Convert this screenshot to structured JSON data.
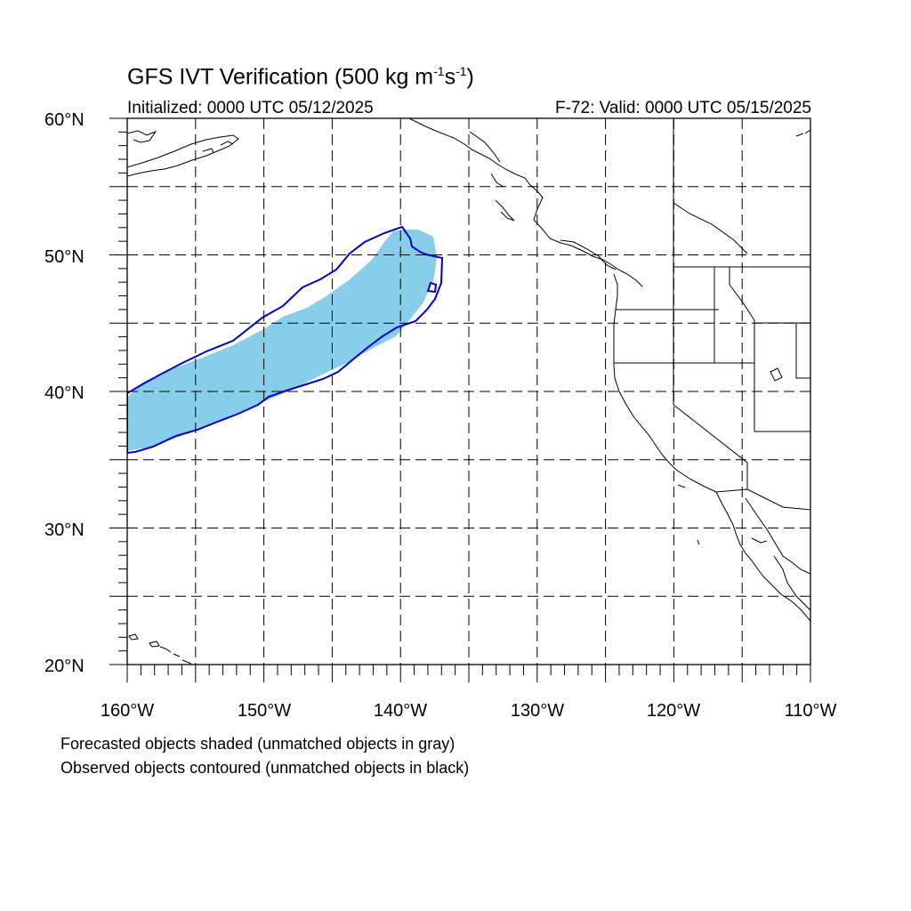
{
  "title": {
    "main": "GFS IVT Verification (500 kg m",
    "exp1": "-1",
    "mid": "s",
    "exp2": "-1",
    "end": ")"
  },
  "subtitle_left": "Initialized: 0000 UTC 05/12/2025",
  "subtitle_right": "F-72: Valid: 0000 UTC 05/15/2025",
  "lat_labels": [
    "60°N",
    "50°N",
    "40°N",
    "30°N",
    "20°N"
  ],
  "lon_labels": [
    "160°W",
    "150°W",
    "140°W",
    "130°W",
    "120°W",
    "110°W"
  ],
  "notes": [
    "Forecasted objects shaded (unmatched objects in gray)",
    "Observed objects contoured (unmatched objects in black)"
  ],
  "colors": {
    "forecast_fill": "#87ceeb",
    "observed_contour": "#0000cd",
    "coastline": "#000000",
    "grid": "#000000"
  }
}
